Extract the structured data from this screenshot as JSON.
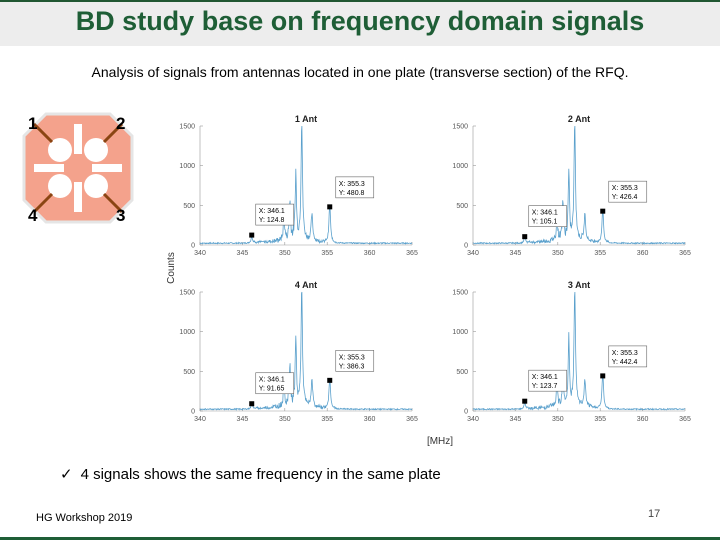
{
  "slide": {
    "title": "BD study base on frequency domain signals",
    "subtitle": "Analysis of signals from antennas located in one plate (transverse section) of the RFQ.",
    "conclusion": "4 signals shows the same frequency in the same plate",
    "footer": "HG Workshop 2019",
    "page_number": "17"
  },
  "rfq_diagram": {
    "labels": [
      "1",
      "2",
      "3",
      "4"
    ],
    "colors": {
      "body": "#f4a28c",
      "outline": "#e5e5e5",
      "antenna": "#8b4513"
    }
  },
  "colors": {
    "title": "#1e5e36",
    "line": "#5aa0cc",
    "marker": "#000000"
  },
  "chart_data": {
    "type": "line",
    "shared_ylabel": "Counts",
    "shared_xlabel": "[MHz]",
    "xlim": [
      340,
      365
    ],
    "ylim": [
      0,
      1500
    ],
    "xticks": [
      340,
      345,
      350,
      355,
      360,
      365
    ],
    "yticks": [
      0,
      500,
      1000,
      1500
    ],
    "panels": [
      {
        "title": "1 Ant",
        "peak_x": 352.0,
        "peak_y": 1500,
        "markers": [
          {
            "x": 346.1,
            "y": 124.8,
            "label_x": "X: 346.1",
            "label_y": "Y: 124.8"
          },
          {
            "x": 355.3,
            "y": 480.8,
            "label_x": "X: 355.3",
            "label_y": "Y: 480.8"
          }
        ]
      },
      {
        "title": "2 Ant",
        "peak_x": 352.0,
        "peak_y": 1500,
        "markers": [
          {
            "x": 346.1,
            "y": 105.1,
            "label_x": "X: 346.1",
            "label_y": "Y: 105.1"
          },
          {
            "x": 355.3,
            "y": 426.4,
            "label_x": "X: 355.3",
            "label_y": "Y: 426.4"
          }
        ]
      },
      {
        "title": "4 Ant",
        "peak_x": 352.0,
        "peak_y": 1500,
        "markers": [
          {
            "x": 346.1,
            "y": 91.65,
            "label_x": "X: 346.1",
            "label_y": "Y: 91.65"
          },
          {
            "x": 355.3,
            "y": 386.3,
            "label_x": "X: 355.3",
            "label_y": "Y: 386.3"
          }
        ]
      },
      {
        "title": "3 Ant",
        "peak_x": 352.0,
        "peak_y": 1500,
        "markers": [
          {
            "x": 346.1,
            "y": 123.7,
            "label_x": "X: 346.1",
            "label_y": "Y: 123.7"
          },
          {
            "x": 355.3,
            "y": 442.4,
            "label_x": "X: 355.3",
            "label_y": "Y: 442.4"
          }
        ]
      }
    ]
  }
}
